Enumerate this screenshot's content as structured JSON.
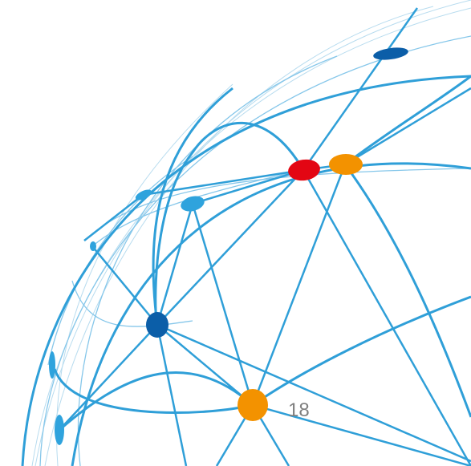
{
  "slide": {
    "page_number": "18"
  },
  "graphic": {
    "name": "globe-network-graphic",
    "colors": {
      "line_primary": "#2f9fd8",
      "line_light": "#86c7ea",
      "line_faint": "#b8dcef",
      "node_dark_blue": "#0b5ea8",
      "node_light_blue": "#2fa3dd",
      "node_orange": "#f39200",
      "node_red": "#e30613"
    }
  }
}
